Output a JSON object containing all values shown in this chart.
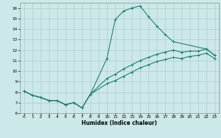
{
  "xlabel": "Humidex (Indice chaleur)",
  "xlim": [
    -0.5,
    23.5
  ],
  "ylim": [
    6.0,
    16.5
  ],
  "xticks": [
    0,
    1,
    2,
    3,
    4,
    5,
    6,
    7,
    8,
    9,
    10,
    11,
    12,
    13,
    14,
    15,
    16,
    17,
    18,
    19,
    20,
    21,
    22,
    23
  ],
  "yticks": [
    6,
    7,
    8,
    9,
    10,
    11,
    12,
    13,
    14,
    15,
    16
  ],
  "bg_color": "#cce8e8",
  "line_color": "#1a7a6e",
  "grid_color": "#aacccc",
  "line1_x": [
    0,
    1,
    2,
    3,
    4,
    5,
    6,
    7,
    8,
    10,
    11,
    12,
    13,
    14,
    15,
    16,
    17,
    18,
    22,
    23
  ],
  "line1_y": [
    8.1,
    7.7,
    7.5,
    7.2,
    7.2,
    6.8,
    7.0,
    6.5,
    7.8,
    11.2,
    14.9,
    15.7,
    16.0,
    16.2,
    15.2,
    14.3,
    13.5,
    12.8,
    12.1,
    11.5
  ],
  "line2_x": [
    0,
    1,
    2,
    3,
    4,
    5,
    6,
    7,
    8,
    10,
    11,
    12,
    13,
    14,
    15,
    16,
    17,
    18,
    19,
    20,
    21,
    22,
    23
  ],
  "line2_y": [
    8.1,
    7.7,
    7.5,
    7.2,
    7.2,
    6.8,
    7.0,
    6.5,
    7.8,
    9.3,
    9.7,
    10.2,
    10.6,
    11.0,
    11.3,
    11.6,
    11.8,
    12.0,
    11.8,
    11.9,
    11.9,
    12.1,
    11.5
  ],
  "line3_x": [
    0,
    1,
    2,
    3,
    4,
    5,
    6,
    7,
    8,
    10,
    11,
    12,
    13,
    14,
    15,
    16,
    17,
    18,
    19,
    20,
    21,
    22,
    23
  ],
  "line3_y": [
    8.1,
    7.7,
    7.5,
    7.2,
    7.2,
    6.8,
    7.0,
    6.5,
    7.8,
    8.8,
    9.1,
    9.5,
    9.9,
    10.3,
    10.6,
    10.9,
    11.1,
    11.3,
    11.2,
    11.4,
    11.5,
    11.7,
    11.2
  ]
}
